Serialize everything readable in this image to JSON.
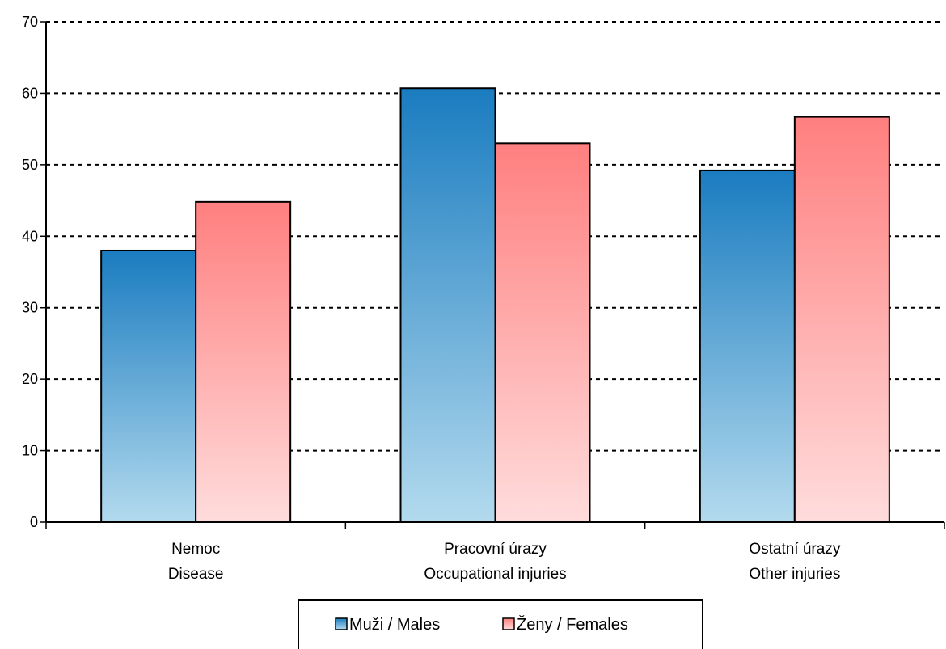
{
  "chart_data": {
    "type": "bar",
    "categories": [
      {
        "line1": "Nemoc",
        "line2": "Disease"
      },
      {
        "line1": "Pracovní úrazy",
        "line2": "Occupational injuries"
      },
      {
        "line1": "Ostatní úrazy",
        "line2": "Other injuries"
      }
    ],
    "series": [
      {
        "name": "Muži / Males",
        "values": [
          38,
          60.7,
          49.2
        ],
        "color_top": "#1a7cc0",
        "color_bottom": "#b3daee"
      },
      {
        "name": "Ženy / Females",
        "values": [
          44.8,
          53,
          56.7
        ],
        "color_top": "#ff7f7f",
        "color_bottom": "#ffdcdc"
      }
    ],
    "ylim": [
      0,
      70
    ],
    "yticks": [
      "0",
      "10",
      "20",
      "30",
      "40",
      "50",
      "60",
      "70"
    ],
    "grid": true,
    "legend_position": "bottom"
  }
}
